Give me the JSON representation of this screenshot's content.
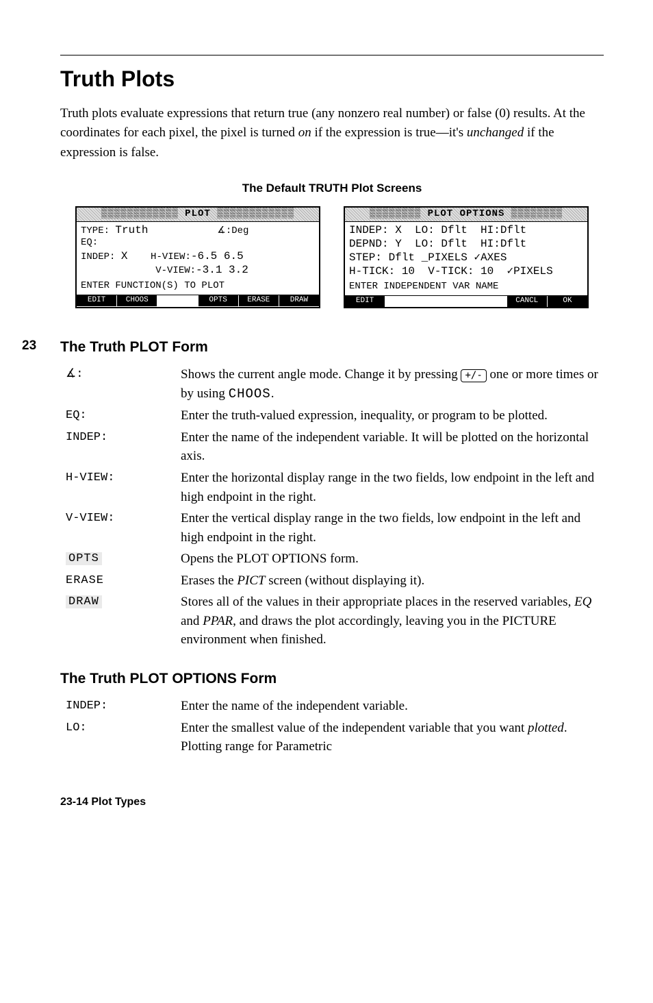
{
  "page": {
    "title": "Truth Plots",
    "intro_html": "Truth plots evaluate expressions that return true (any nonzero real number) or false (0) results. At the coordinates for each pixel, the pixel is turned <em>on</em> if the expression is true—it's <em>unchanged</em> if the expression is false.",
    "screens_heading": "The Default TRUTH Plot Screens",
    "side_number": "23",
    "section1_title": "The Truth PLOT Form",
    "section2_title": "The Truth PLOT OPTIONS Form",
    "footer": "23-14   Plot Types"
  },
  "lcd_left": {
    "title": "▒▒▒▒▒▒▒▒▒▒▒▒ PLOT ▒▒▒▒▒▒▒▒▒▒▒▒",
    "line1_label": "TYPE:",
    "line1_val": "Truth",
    "line1_angle": "∡:Deg",
    "line2": "EQ:",
    "line3_lbl": "INDEP:",
    "line3_val": "X",
    "line3_hv": "H-VIEW:",
    "line3_hvvals": "-6.5 6.5",
    "line4_vv": "V-VIEW:",
    "line4_vvvals": "-3.1 3.2",
    "prompt": "ENTER FUNCTION(S) TO PLOT",
    "menu": [
      "EDIT",
      "CHOOS",
      "",
      "OPTS",
      "ERASE",
      "DRAW"
    ]
  },
  "lcd_right": {
    "title": "▒▒▒▒▒▒▒▒ PLOT OPTIONS ▒▒▒▒▒▒▒▒",
    "line1": "INDEP: X  LO: Dflt  HI:Dflt",
    "line2": "DEPND: Y  LO: Dflt  HI:Dflt",
    "line3": "STEP: Dflt _PIXELS ✓AXES",
    "line4": "H-TICK: 10  V-TICK: 10  ✓PIXELS",
    "prompt": "ENTER INDEPENDENT VAR NAME",
    "menu": [
      "EDIT",
      "",
      "",
      "",
      "CANCL",
      "OK"
    ]
  },
  "defs1": [
    {
      "term": "∡:",
      "body": "Shows the current angle mode. Change it by pressing <span class='key'>+/-</span> one or more times or by using <span class='softkey'>CHOOS</span>.",
      "cls": ""
    },
    {
      "term": "EQ:",
      "body": "Enter the truth-valued expression, inequality, or program to be plotted.",
      "cls": ""
    },
    {
      "term": "INDEP:",
      "body": "Enter the name of the independent variable. It will be plotted on the horizontal axis.",
      "cls": ""
    },
    {
      "term": "H-VIEW:",
      "body": "Enter the horizontal display range in the two fields, low endpoint in the left and high endpoint in the right.",
      "cls": ""
    },
    {
      "term": "V-VIEW:",
      "body": "Enter the vertical display range in the two fields, low endpoint in the left and high endpoint in the right.",
      "cls": ""
    },
    {
      "term": "OPTS",
      "body": "Opens the PLOT OPTIONS form.",
      "cls": "menukey shaded"
    },
    {
      "term": "ERASE",
      "body": "Erases the <span class='italic'>PICT</span> screen (without displaying it).",
      "cls": "menukey"
    },
    {
      "term": "DRAW",
      "body": "Stores all of the values in their appropriate places in the reserved variables, <span class='italic'>EQ</span> and <span class='italic'>PPAR</span>, and draws the plot accordingly, leaving you in the PICTURE environment when finished.",
      "cls": "menukey shaded"
    }
  ],
  "defs2": [
    {
      "term": "INDEP:",
      "body": "Enter the name of the independent variable.",
      "cls": ""
    },
    {
      "term": "LO:",
      "body": "Enter the smallest value of the independent variable that you want <span class='italic'>plotted</span>. Plotting range for Parametric",
      "cls": ""
    }
  ]
}
